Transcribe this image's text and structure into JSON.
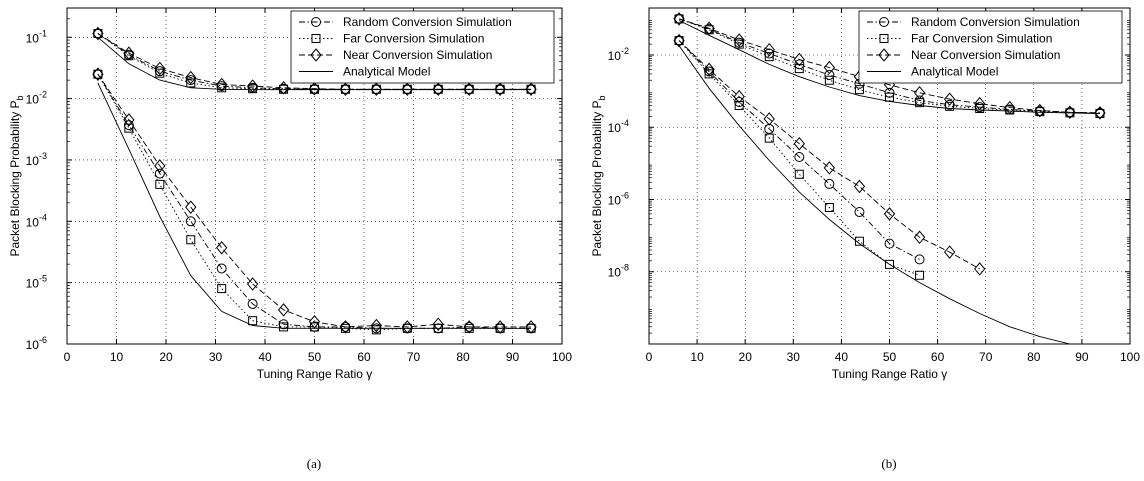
{
  "chart_data": [
    {
      "type": "line",
      "caption": "(a)",
      "xlabel": "Tuning Range Ratio γ",
      "ylabel": "Packet Blocking Probability P",
      "ylabel_sub": "b",
      "xlim": [
        0,
        100
      ],
      "ylim": [
        1e-06,
        0.3
      ],
      "yscale": "log",
      "x_ticks": [
        0,
        10,
        20,
        30,
        40,
        50,
        60,
        70,
        80,
        90,
        100
      ],
      "y_ticks": [
        {
          "value": 1e-06,
          "base": "10",
          "exp": "-6"
        },
        {
          "value": 1e-05,
          "base": "10",
          "exp": "-5"
        },
        {
          "value": 0.0001,
          "base": "10",
          "exp": "-4"
        },
        {
          "value": 0.001,
          "base": "10",
          "exp": "-3"
        },
        {
          "value": 0.01,
          "base": "10",
          "exp": "-2"
        },
        {
          "value": 0.1,
          "base": "10",
          "exp": "-1"
        }
      ],
      "grid": true,
      "legend_position": "top-right",
      "legend": [
        {
          "label": "Random Conversion Simulation",
          "marker": "circle",
          "dash": "-."
        },
        {
          "label": "Far  Conversion Simulation",
          "marker": "square",
          "dash": ":"
        },
        {
          "label": "Near Conversion Simulation",
          "marker": "diamond",
          "dash": "--"
        },
        {
          "label": "Analytical Model",
          "marker": "none",
          "dash": "-"
        }
      ],
      "series": [
        {
          "legend": 0,
          "marker": "circle",
          "dash": "-.",
          "x": [
            6.25,
            12.5,
            18.75,
            25,
            31.25,
            37.5,
            43.75,
            50,
            56.25,
            62.5,
            68.75,
            75,
            81.25,
            87.5,
            93.75
          ],
          "y": [
            0.115,
            0.052,
            0.028,
            0.02,
            0.016,
            0.015,
            0.0145,
            0.0142,
            0.0142,
            0.0142,
            0.0142,
            0.0142,
            0.0142,
            0.0142,
            0.0142
          ]
        },
        {
          "legend": 1,
          "marker": "square",
          "dash": ":",
          "x": [
            6.25,
            12.5,
            18.75,
            25,
            31.25,
            37.5,
            43.75,
            50,
            56.25,
            62.5,
            68.75,
            75,
            81.25,
            87.5,
            93.75
          ],
          "y": [
            0.115,
            0.05,
            0.026,
            0.018,
            0.015,
            0.0145,
            0.0142,
            0.0142,
            0.0142,
            0.0142,
            0.0142,
            0.0142,
            0.0142,
            0.0142,
            0.0142
          ]
        },
        {
          "legend": 2,
          "marker": "diamond",
          "dash": "--",
          "x": [
            6.25,
            12.5,
            18.75,
            25,
            31.25,
            37.5,
            43.75,
            50,
            56.25,
            62.5,
            68.75,
            75,
            81.25,
            87.5,
            93.75
          ],
          "y": [
            0.115,
            0.055,
            0.031,
            0.022,
            0.017,
            0.016,
            0.015,
            0.0145,
            0.0142,
            0.0142,
            0.0142,
            0.0142,
            0.0142,
            0.0142,
            0.0142
          ]
        },
        {
          "legend": 3,
          "marker": "none",
          "dash": "-",
          "x": [
            6.25,
            12.5,
            18.75,
            25,
            31.25,
            37.5,
            43.75,
            50,
            56.25,
            62.5,
            68.75,
            75,
            81.25,
            87.5,
            93.75
          ],
          "y": [
            0.1,
            0.037,
            0.02,
            0.015,
            0.0142,
            0.014,
            0.014,
            0.014,
            0.014,
            0.014,
            0.014,
            0.014,
            0.014,
            0.014,
            0.014
          ]
        },
        {
          "legend": 0,
          "marker": "circle",
          "dash": "-.",
          "x": [
            6.25,
            12.5,
            18.75,
            25,
            31.25,
            37.5,
            43.75,
            50,
            56.25,
            62.5,
            68.75,
            75,
            81.25,
            87.5,
            93.75
          ],
          "y": [
            0.025,
            0.0037,
            0.0006,
            0.0001,
            1.7e-05,
            4.5e-06,
            2.1e-06,
            1.9e-06,
            1.9e-06,
            1.8e-06,
            1.8e-06,
            1.8e-06,
            1.9e-06,
            1.8e-06,
            1.8e-06
          ]
        },
        {
          "legend": 1,
          "marker": "square",
          "dash": ":",
          "x": [
            6.25,
            12.5,
            18.75,
            25,
            31.25,
            37.5,
            43.75,
            50,
            56.25,
            62.5,
            68.75,
            75,
            81.25,
            87.5,
            93.75
          ],
          "y": [
            0.025,
            0.0033,
            0.0004,
            5e-05,
            8e-06,
            2.4e-06,
            1.9e-06,
            1.9e-06,
            1.8e-06,
            1.7e-06,
            1.8e-06,
            1.8e-06,
            1.8e-06,
            1.8e-06,
            1.8e-06
          ]
        },
        {
          "legend": 2,
          "marker": "diamond",
          "dash": "--",
          "x": [
            6.25,
            12.5,
            18.75,
            25,
            31.25,
            37.5,
            43.75,
            50,
            56.25,
            62.5,
            68.75,
            75,
            81.25,
            87.5,
            93.75
          ],
          "y": [
            0.025,
            0.0045,
            0.0008,
            0.00017,
            3.7e-05,
            9.5e-06,
            3.6e-06,
            2.3e-06,
            1.9e-06,
            2e-06,
            1.9e-06,
            2.1e-06,
            1.9e-06,
            1.9e-06,
            1.9e-06
          ]
        },
        {
          "legend": 3,
          "marker": "none",
          "dash": "-",
          "x": [
            6.25,
            12.5,
            18.75,
            25,
            31.25,
            37.5,
            43.75,
            50,
            56.25,
            62.5,
            68.75,
            75,
            81.25,
            87.5,
            93.75
          ],
          "y": [
            0.018,
            0.0015,
            0.00012,
            1.3e-05,
            3.4e-06,
            2e-06,
            1.8e-06,
            1.8e-06,
            1.8e-06,
            1.8e-06,
            1.8e-06,
            1.8e-06,
            1.8e-06,
            1.8e-06,
            1.8e-06
          ]
        }
      ]
    },
    {
      "type": "line",
      "caption": "(b)",
      "xlabel": "Tuning Range Ratio γ",
      "ylabel": "Packet Blocking Probability P",
      "ylabel_sub": "b",
      "xlim": [
        0,
        100
      ],
      "ylim": [
        1e-10,
        0.2
      ],
      "yscale": "log",
      "x_ticks": [
        0,
        10,
        20,
        30,
        40,
        50,
        60,
        70,
        80,
        90,
        100
      ],
      "y_ticks": [
        {
          "value": 1e-08,
          "base": "10",
          "exp": "-8"
        },
        {
          "value": 1e-06,
          "base": "10",
          "exp": "-6"
        },
        {
          "value": 0.0001,
          "base": "10",
          "exp": "-4"
        },
        {
          "value": 0.01,
          "base": "10",
          "exp": "-2"
        }
      ],
      "grid": true,
      "legend_position": "top-right",
      "legend": [
        {
          "label": "Random Conversion Simulation",
          "marker": "circle",
          "dash": "-."
        },
        {
          "label": "Far  Conversion Simulation",
          "marker": "square",
          "dash": ":"
        },
        {
          "label": "Near Conversion Simulation",
          "marker": "diamond",
          "dash": "--"
        },
        {
          "label": "Analytical Model",
          "marker": "none",
          "dash": "-"
        }
      ],
      "series": [
        {
          "legend": 0,
          "marker": "circle",
          "dash": "-.",
          "x": [
            6.25,
            12.5,
            18.75,
            25,
            31.25,
            37.5,
            43.75,
            50,
            56.25,
            62.5,
            68.75,
            75,
            81.25,
            87.5,
            93.75
          ],
          "y": [
            0.1,
            0.052,
            0.022,
            0.011,
            0.0055,
            0.0028,
            0.0016,
            0.0009,
            0.00055,
            0.00042,
            0.00036,
            0.00031,
            0.00028,
            0.00026,
            0.00025
          ]
        },
        {
          "legend": 1,
          "marker": "square",
          "dash": ":",
          "x": [
            6.25,
            12.5,
            18.75,
            25,
            31.25,
            37.5,
            43.75,
            50,
            56.25,
            62.5,
            68.75,
            75,
            81.25,
            87.5,
            93.75
          ],
          "y": [
            0.1,
            0.05,
            0.02,
            0.009,
            0.0042,
            0.002,
            0.0011,
            0.00068,
            0.00048,
            0.00038,
            0.00033,
            0.0003,
            0.00027,
            0.00025,
            0.00024
          ]
        },
        {
          "legend": 2,
          "marker": "diamond",
          "dash": "--",
          "x": [
            6.25,
            12.5,
            18.75,
            25,
            31.25,
            37.5,
            43.75,
            50,
            56.25,
            62.5,
            68.75,
            75,
            81.25,
            87.5,
            93.75
          ],
          "y": [
            0.1,
            0.055,
            0.026,
            0.014,
            0.0075,
            0.0045,
            0.0025,
            0.0015,
            0.0009,
            0.0006,
            0.00045,
            0.00035,
            0.00029,
            0.00026,
            0.00025
          ]
        },
        {
          "legend": 3,
          "marker": "none",
          "dash": "-",
          "x": [
            6.25,
            12.5,
            18.75,
            25,
            31.25,
            37.5,
            43.75,
            50,
            56.25,
            62.5,
            68.75,
            75,
            81.25,
            87.5,
            93.75
          ],
          "y": [
            0.09,
            0.035,
            0.014,
            0.0055,
            0.0025,
            0.0013,
            0.00075,
            0.00052,
            0.0004,
            0.00033,
            0.0003,
            0.00028,
            0.00026,
            0.00025,
            0.00024
          ]
        },
        {
          "legend": 0,
          "marker": "circle",
          "dash": "-.",
          "x": [
            6.25,
            12.5,
            18.75,
            25,
            31.25,
            37.5,
            43.75,
            50,
            56.25
          ],
          "y": [
            0.025,
            0.0035,
            0.0005,
            9e-05,
            1.5e-05,
            2.7e-06,
            4.5e-07,
            6e-08,
            2.2e-08
          ]
        },
        {
          "legend": 1,
          "marker": "square",
          "dash": ":",
          "x": [
            6.25,
            12.5,
            18.75,
            25,
            31.25,
            37.5,
            43.75,
            50,
            56.25
          ],
          "y": [
            0.025,
            0.003,
            0.0004,
            5e-05,
            5e-06,
            6e-07,
            7e-08,
            1.6e-08,
            8e-09
          ]
        },
        {
          "legend": 2,
          "marker": "diamond",
          "dash": "--",
          "x": [
            6.25,
            12.5,
            18.75,
            25,
            31.25,
            37.5,
            43.75,
            50,
            56.25,
            62.5,
            68.75
          ],
          "y": [
            0.025,
            0.004,
            0.0007,
            0.00017,
            3.5e-05,
            7.5e-06,
            2.3e-06,
            4e-07,
            9e-08,
            3.5e-08,
            1.2e-08
          ]
        },
        {
          "legend": 3,
          "marker": "none",
          "dash": "-",
          "x": [
            6.25,
            12.5,
            18.75,
            25,
            31.25,
            37.5,
            43.75,
            50,
            56.25,
            62.5,
            68.75,
            75,
            81.25,
            87.5,
            93.75
          ],
          "y": [
            0.018,
            0.0012,
            0.00011,
            1.2e-05,
            1.6e-06,
            2.8e-07,
            6e-08,
            1.6e-08,
            5e-09,
            1.8e-09,
            7e-10,
            3e-10,
            1.6e-10,
            1e-10,
            8e-11
          ]
        }
      ]
    }
  ]
}
